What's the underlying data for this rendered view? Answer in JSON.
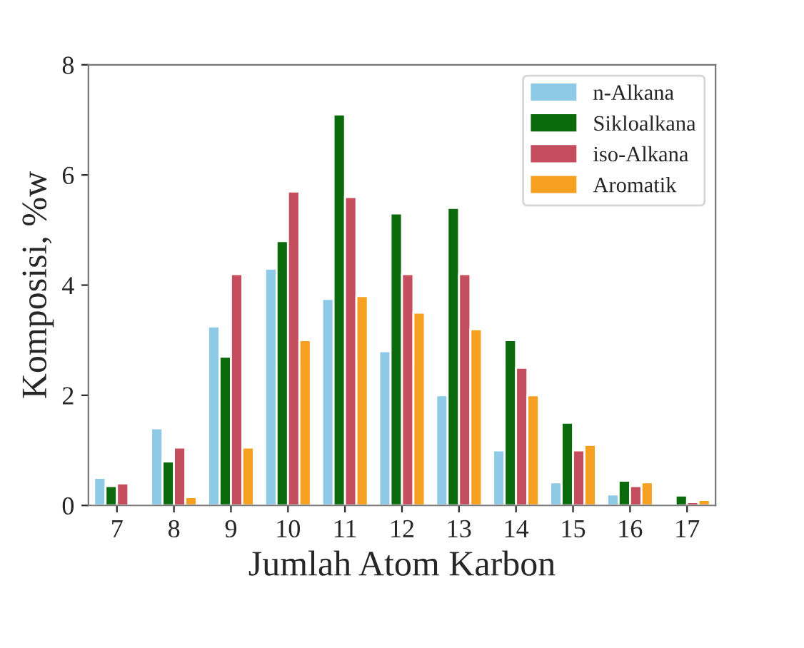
{
  "chart_data": {
    "type": "bar",
    "xlabel": "Jumlah Atom Karbon",
    "ylabel": "Komposisi, %w",
    "categories": [
      "7",
      "8",
      "9",
      "10",
      "11",
      "12",
      "13",
      "14",
      "15",
      "16",
      "17"
    ],
    "series": [
      {
        "name": "n-Alkana",
        "color": "#8ecae6",
        "values": [
          0.5,
          1.4,
          3.25,
          4.3,
          3.75,
          2.8,
          2.0,
          1.0,
          0.42,
          0.2,
          null
        ]
      },
      {
        "name": "Sikloalkana",
        "color": "#0b6a0b",
        "values": [
          0.35,
          0.8,
          2.7,
          4.8,
          7.1,
          5.3,
          5.4,
          3.0,
          1.5,
          0.45,
          0.18
        ]
      },
      {
        "name": "iso-Alkana",
        "color": "#c44e5e",
        "values": [
          0.4,
          1.05,
          4.2,
          5.7,
          5.6,
          4.2,
          4.2,
          2.5,
          1.0,
          0.35,
          0.06
        ]
      },
      {
        "name": "Aromatik",
        "color": "#f5a020",
        "values": [
          null,
          0.15,
          1.05,
          3.0,
          3.8,
          3.5,
          3.2,
          2.0,
          1.1,
          0.42,
          0.1
        ]
      }
    ],
    "ylim": [
      0,
      8
    ],
    "yticks": [
      0,
      2,
      4,
      6,
      8
    ],
    "grid": false,
    "legend": "top right"
  }
}
